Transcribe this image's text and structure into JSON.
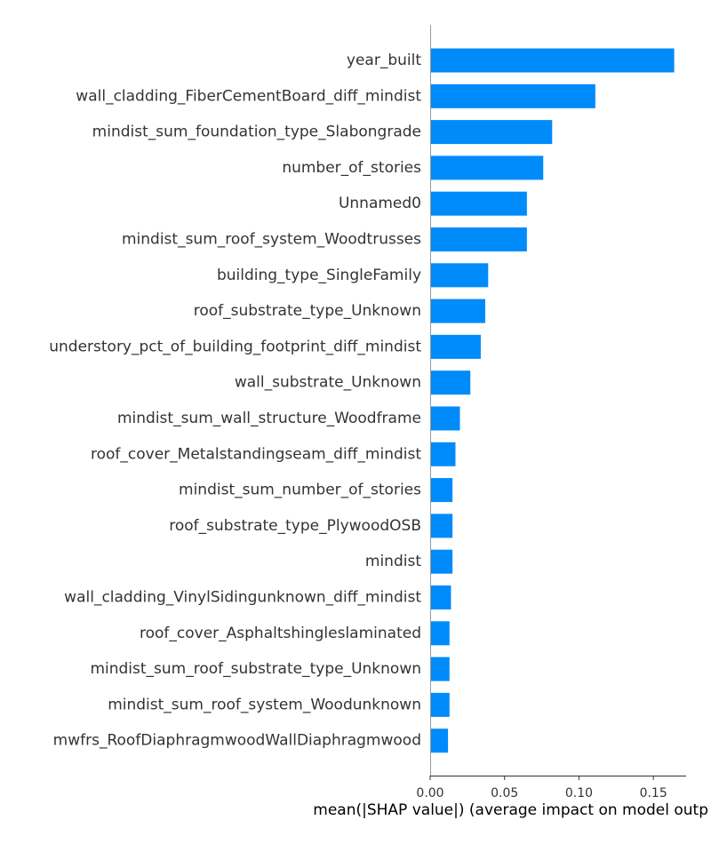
{
  "chart_data": {
    "type": "bar",
    "orientation": "horizontal",
    "title": "",
    "xlabel": "mean(|SHAP value|) (average impact on model outp",
    "ylabel": "",
    "xlim": [
      0,
      0.172
    ],
    "x_ticks": [
      {
        "value": 0.0,
        "label": "0.00"
      },
      {
        "value": 0.05,
        "label": "0.05"
      },
      {
        "value": 0.1,
        "label": "0.10"
      },
      {
        "value": 0.15,
        "label": "0.15"
      }
    ],
    "bar_color": "#008bfb",
    "grid": false,
    "legend": "none",
    "categories": [
      "year_built",
      "wall_cladding_FiberCementBoard_diff_mindist",
      "mindist_sum_foundation_type_Slabongrade",
      "number_of_stories",
      "Unnamed0",
      "mindist_sum_roof_system_Woodtrusses",
      "building_type_SingleFamily",
      "roof_substrate_type_Unknown",
      "understory_pct_of_building_footprint_diff_mindist",
      "wall_substrate_Unknown",
      "mindist_sum_wall_structure_Woodframe",
      "roof_cover_Metalstandingseam_diff_mindist",
      "mindist_sum_number_of_stories",
      "roof_substrate_type_PlywoodOSB",
      "mindist",
      "wall_cladding_VinylSidingunknown_diff_mindist",
      "roof_cover_Asphaltshingleslaminated",
      "mindist_sum_roof_substrate_type_Unknown",
      "mindist_sum_roof_system_Woodunknown",
      "mwfrs_RoofDiaphragmwoodWallDiaphragmwood"
    ],
    "values": [
      0.164,
      0.111,
      0.082,
      0.076,
      0.065,
      0.065,
      0.039,
      0.037,
      0.034,
      0.027,
      0.02,
      0.017,
      0.015,
      0.015,
      0.015,
      0.014,
      0.013,
      0.013,
      0.013,
      0.012
    ]
  }
}
